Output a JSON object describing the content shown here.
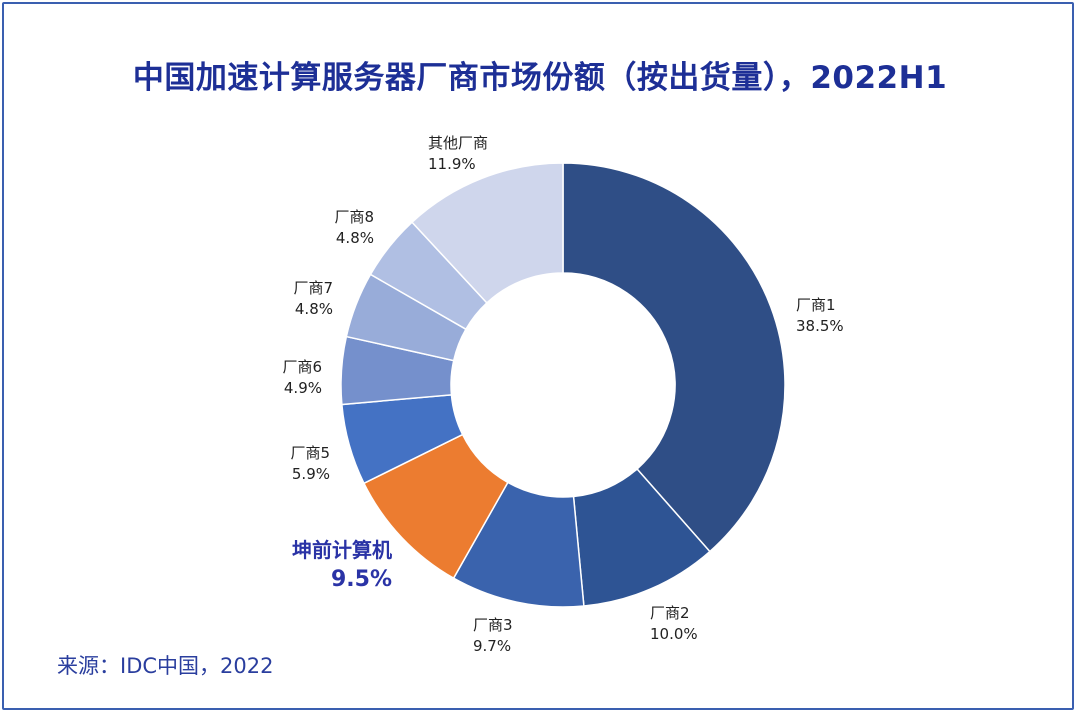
{
  "title": "中国加速计算服务器厂商市场份额（按出货量），2022H1",
  "source": "来源：IDC中国，2022",
  "chart_data": {
    "type": "pie",
    "variant": "donut",
    "title": "中国加速计算服务器厂商市场份额（按出货量），2022H1",
    "categories": [
      "厂商1",
      "厂商2",
      "厂商3",
      "坤前计算机",
      "厂商5",
      "厂商6",
      "厂商7",
      "厂商8",
      "其他厂商"
    ],
    "values": [
      38.5,
      10.0,
      9.7,
      9.5,
      5.9,
      4.9,
      4.8,
      4.8,
      11.9
    ],
    "value_labels": [
      "38.5%",
      "10.0%",
      "9.7%",
      "9.5%",
      "5.9%",
      "4.9%",
      "4.8%",
      "4.8%",
      "11.9%"
    ],
    "colors": [
      "#2f4e86",
      "#2e5494",
      "#3a63ad",
      "#ec7c30",
      "#4472c4",
      "#7590cc",
      "#98acd9",
      "#b0bfe3",
      "#cfd6ec"
    ],
    "highlight": "坤前计算机"
  }
}
